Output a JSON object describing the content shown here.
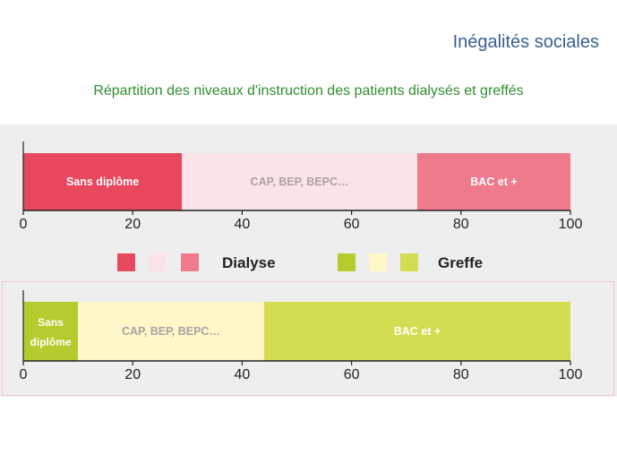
{
  "slide_title": "Inégalités sociales",
  "subtitle": "Répartition des niveaux d'instruction  des patients dialysés et greffés",
  "colors": {
    "dialyse_sans": "#e8485e",
    "dialyse_cap": "#fbe4e8",
    "dialyse_bac": "#ef7a8c",
    "greffe_sans": "#b6cc2e",
    "greffe_cap": "#fff7c8",
    "greffe_bac": "#d4dd52",
    "panel_bg": "#efeeee"
  },
  "legend": {
    "dialyse_label": "Dialyse",
    "greffe_label": "Greffe"
  },
  "chart_data": [
    {
      "type": "bar",
      "orientation": "horizontal-stacked",
      "name": "Dialyse",
      "xlim": [
        0,
        100
      ],
      "ticks": [
        0,
        20,
        40,
        60,
        80,
        100
      ],
      "segments": [
        {
          "label": "Sans diplôme",
          "value": 29
        },
        {
          "label": "CAP, BEP, BEPC…",
          "value": 43
        },
        {
          "label": "BAC et +",
          "value": 28
        }
      ]
    },
    {
      "type": "bar",
      "orientation": "horizontal-stacked",
      "name": "Greffe",
      "xlim": [
        0,
        100
      ],
      "ticks": [
        0,
        20,
        40,
        60,
        80,
        100
      ],
      "segments": [
        {
          "label": "Sans diplôme",
          "value": 10
        },
        {
          "label": "CAP, BEP, BEPC…",
          "value": 34
        },
        {
          "label": "BAC et +",
          "value": 56
        }
      ]
    }
  ]
}
